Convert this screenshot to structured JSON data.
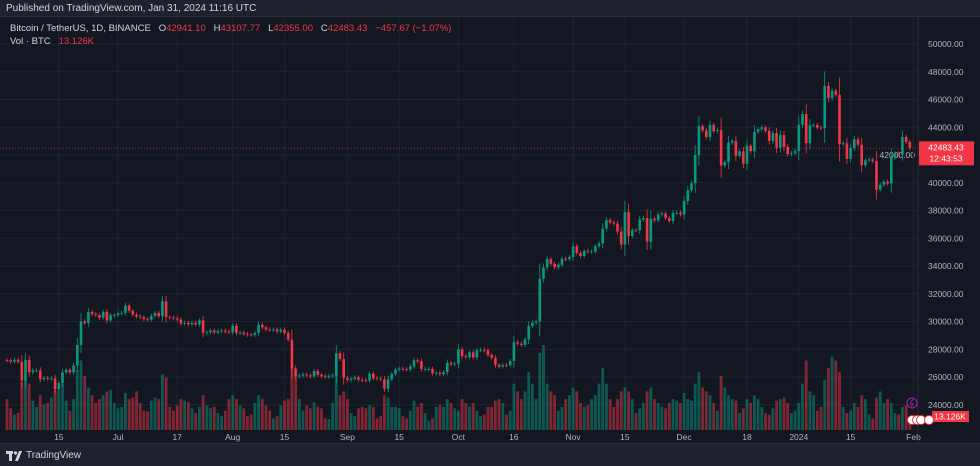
{
  "published": "Published on TradingView.com, Jan 31, 2024 11:16 UTC",
  "legend": {
    "symbol": "Bitcoin / TetherUS, 1D, BINANCE",
    "open_label": "O",
    "open": "42941.10",
    "high_label": "H",
    "high": "43107.77",
    "low_label": "L",
    "low": "42355.00",
    "close_label": "C",
    "close": "42483.43",
    "change": "−457.67 (−1.07%)",
    "vol_label": "Vol · BTC",
    "vol": "13.126K"
  },
  "price_badge": {
    "price": "42483.43",
    "countdown": "12:43:53"
  },
  "volume_badge": "13.126K",
  "footer": {
    "brand": "TradingView"
  },
  "colors": {
    "up": "#089981",
    "down": "#f23645",
    "background": "#131722"
  },
  "chart_data": {
    "type": "candlestick",
    "interval": "1D",
    "start_date": "2023-06-01",
    "end_date": "2024-01-31",
    "ylim": [
      23000,
      51000
    ],
    "y_ticks": [
      24000,
      26000,
      28000,
      30000,
      32000,
      34000,
      36000,
      38000,
      40000,
      42000,
      44000,
      46000,
      48000,
      50000
    ],
    "x_ticks": [
      {
        "label": "15",
        "day": 14
      },
      {
        "label": "Jul",
        "day": 30
      },
      {
        "label": "17",
        "day": 46
      },
      {
        "label": "Aug",
        "day": 61
      },
      {
        "label": "15",
        "day": 75
      },
      {
        "label": "Sep",
        "day": 92
      },
      {
        "label": "15",
        "day": 106
      },
      {
        "label": "Oct",
        "day": 122
      },
      {
        "label": "16",
        "day": 137
      },
      {
        "label": "Nov",
        "day": 153
      },
      {
        "label": "15",
        "day": 167
      },
      {
        "label": "Dec",
        "day": 183
      },
      {
        "label": "18",
        "day": 200
      },
      {
        "label": "2024",
        "day": 214
      },
      {
        "label": "15",
        "day": 228
      },
      {
        "label": "Feb",
        "day": 245
      }
    ],
    "open_first": 27210,
    "close": [
      27200,
      27100,
      27250,
      27100,
      25750,
      27230,
      26340,
      26480,
      26480,
      25840,
      25920,
      25900,
      25900,
      25120,
      25570,
      26330,
      26510,
      26340,
      26840,
      28310,
      30000,
      29890,
      30690,
      30530,
      30470,
      30270,
      30690,
      30080,
      30450,
      30470,
      30590,
      30620,
      31150,
      30770,
      30500,
      30360,
      30300,
      30170,
      30140,
      30410,
      30620,
      30380,
      31450,
      30310,
      30290,
      30230,
      30140,
      29860,
      29910,
      29800,
      29900,
      29790,
      30080,
      29180,
      29230,
      29350,
      29210,
      29320,
      29350,
      29270,
      29230,
      29700,
      29180,
      29190,
      29100,
      29050,
      29040,
      29180,
      29770,
      29580,
      29420,
      29400,
      29420,
      29280,
      29410,
      29170,
      28700,
      26620,
      26050,
      26100,
      26190,
      26120,
      26040,
      26430,
      26160,
      26060,
      26010,
      26090,
      26110,
      27720,
      27300,
      25940,
      25800,
      25870,
      25970,
      25800,
      25780,
      25750,
      26240,
      25900,
      25890,
      25830,
      25160,
      25840,
      26220,
      26530,
      26600,
      26570,
      26530,
      26760,
      27210,
      27130,
      26570,
      26580,
      26580,
      26250,
      26300,
      26210,
      26350,
      27020,
      26910,
      26960,
      27990,
      27500,
      27430,
      27780,
      27410,
      27930,
      27950,
      27920,
      27590,
      27390,
      26870,
      26750,
      26860,
      26850,
      27150,
      28500,
      28400,
      28320,
      28710,
      29670,
      29910,
      30000,
      33080,
      33900,
      34500,
      34150,
      33910,
      34090,
      34530,
      34500,
      34650,
      35420,
      34940,
      34720,
      35080,
      35040,
      35040,
      35420,
      35630,
      36700,
      37310,
      37140,
      37060,
      36490,
      35550,
      37880,
      36160,
      36590,
      36580,
      37360,
      37460,
      35750,
      37410,
      37290,
      37720,
      37780,
      37450,
      37240,
      37830,
      37850,
      37720,
      38690,
      39470,
      39970,
      41990,
      44080,
      43770,
      43290,
      44170,
      43720,
      43790,
      41240,
      41480,
      42890,
      43020,
      41940,
      42260,
      41370,
      42660,
      42270,
      43660,
      43860,
      43990,
      43740,
      43020,
      43580,
      42520,
      43440,
      42580,
      42070,
      42140,
      42280,
      44180,
      44950,
      42850,
      44150,
      44160,
      43970,
      43930,
      46970,
      46110,
      46630,
      46340,
      42780,
      42840,
      41730,
      42500,
      43140,
      42740,
      41260,
      41620,
      41680,
      41570,
      39510,
      39850,
      40080,
      39940,
      41810,
      42120,
      42030,
      43300,
      42940,
      42483
    ],
    "volume_k": [
      40,
      28,
      20,
      22,
      62,
      65,
      60,
      38,
      30,
      45,
      33,
      35,
      42,
      52,
      50,
      60,
      38,
      25,
      40,
      78,
      90,
      70,
      55,
      45,
      35,
      40,
      45,
      50,
      52,
      35,
      28,
      30,
      48,
      40,
      42,
      50,
      35,
      25,
      24,
      38,
      42,
      40,
      72,
      68,
      30,
      25,
      32,
      40,
      38,
      36,
      28,
      22,
      30,
      45,
      32,
      28,
      30,
      22,
      18,
      25,
      40,
      45,
      40,
      32,
      28,
      18,
      20,
      35,
      45,
      40,
      32,
      25,
      15,
      18,
      32,
      38,
      40,
      85,
      70,
      40,
      25,
      32,
      28,
      36,
      30,
      28,
      15,
      14,
      35,
      75,
      45,
      50,
      40,
      22,
      18,
      28,
      30,
      28,
      32,
      30,
      15,
      18,
      45,
      42,
      30,
      30,
      28,
      18,
      15,
      25,
      38,
      30,
      35,
      22,
      12,
      15,
      30,
      32,
      30,
      40,
      35,
      28,
      25,
      40,
      35,
      30,
      35,
      25,
      18,
      20,
      30,
      30,
      38,
      40,
      35,
      20,
      25,
      60,
      50,
      40,
      50,
      75,
      60,
      40,
      100,
      110,
      60,
      50,
      45,
      25,
      30,
      40,
      45,
      55,
      50,
      35,
      30,
      32,
      40,
      45,
      60,
      80,
      60,
      40,
      30,
      40,
      50,
      55,
      50,
      40,
      22,
      28,
      35,
      50,
      55,
      40,
      35,
      30,
      28,
      35,
      40,
      38,
      35,
      48,
      40,
      38,
      60,
      75,
      55,
      50,
      45,
      35,
      25,
      70,
      55,
      45,
      40,
      38,
      22,
      28,
      40,
      35,
      45,
      40,
      30,
      22,
      20,
      28,
      38,
      40,
      42,
      35,
      22,
      25,
      35,
      60,
      90,
      50,
      45,
      25,
      30,
      65,
      80,
      95,
      90,
      75,
      30,
      22,
      25,
      35,
      30,
      45,
      40,
      20,
      15,
      42,
      50,
      35,
      40,
      35,
      22,
      20,
      30,
      32,
      13.126
    ]
  }
}
